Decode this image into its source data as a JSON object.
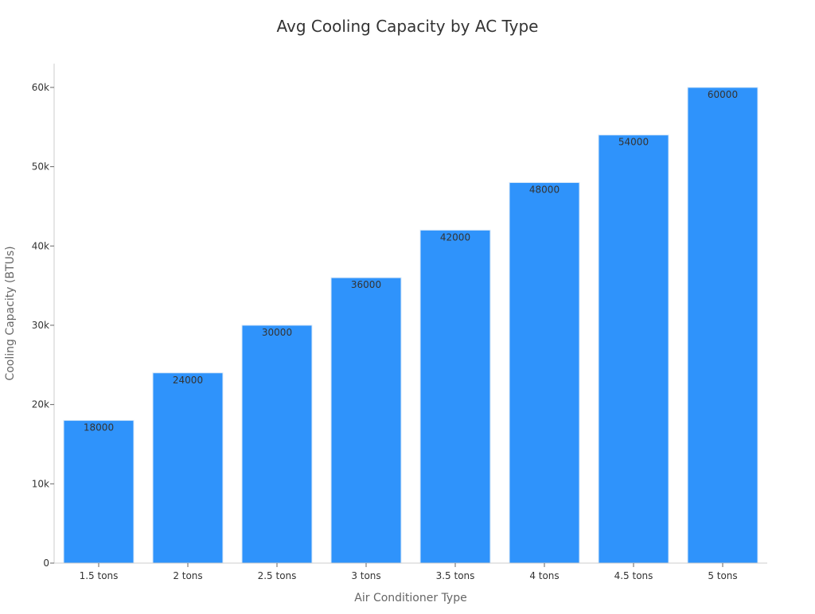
{
  "chart_data": {
    "type": "bar",
    "title": "Avg Cooling Capacity by AC Type",
    "xlabel": "Air Conditioner Type",
    "ylabel": "Cooling Capacity (BTUs)",
    "categories": [
      "1.5 tons",
      "2 tons",
      "2.5 tons",
      "3 tons",
      "3.5 tons",
      "4 tons",
      "4.5 tons",
      "5 tons"
    ],
    "values": [
      18000,
      24000,
      30000,
      36000,
      42000,
      48000,
      54000,
      60000
    ],
    "data_labels": [
      "18000",
      "24000",
      "30000",
      "36000",
      "42000",
      "48000",
      "54000",
      "60000"
    ],
    "ylim": [
      0,
      63000
    ],
    "yticks": [
      0,
      10000,
      20000,
      30000,
      40000,
      50000,
      60000
    ],
    "ytick_labels": [
      "0",
      "10k",
      "20k",
      "30k",
      "40k",
      "50k",
      "60k"
    ],
    "grid": false,
    "legend": "none",
    "colors": {
      "bar": "#2f93fb",
      "bar_edge": "#d8e8f8"
    }
  }
}
